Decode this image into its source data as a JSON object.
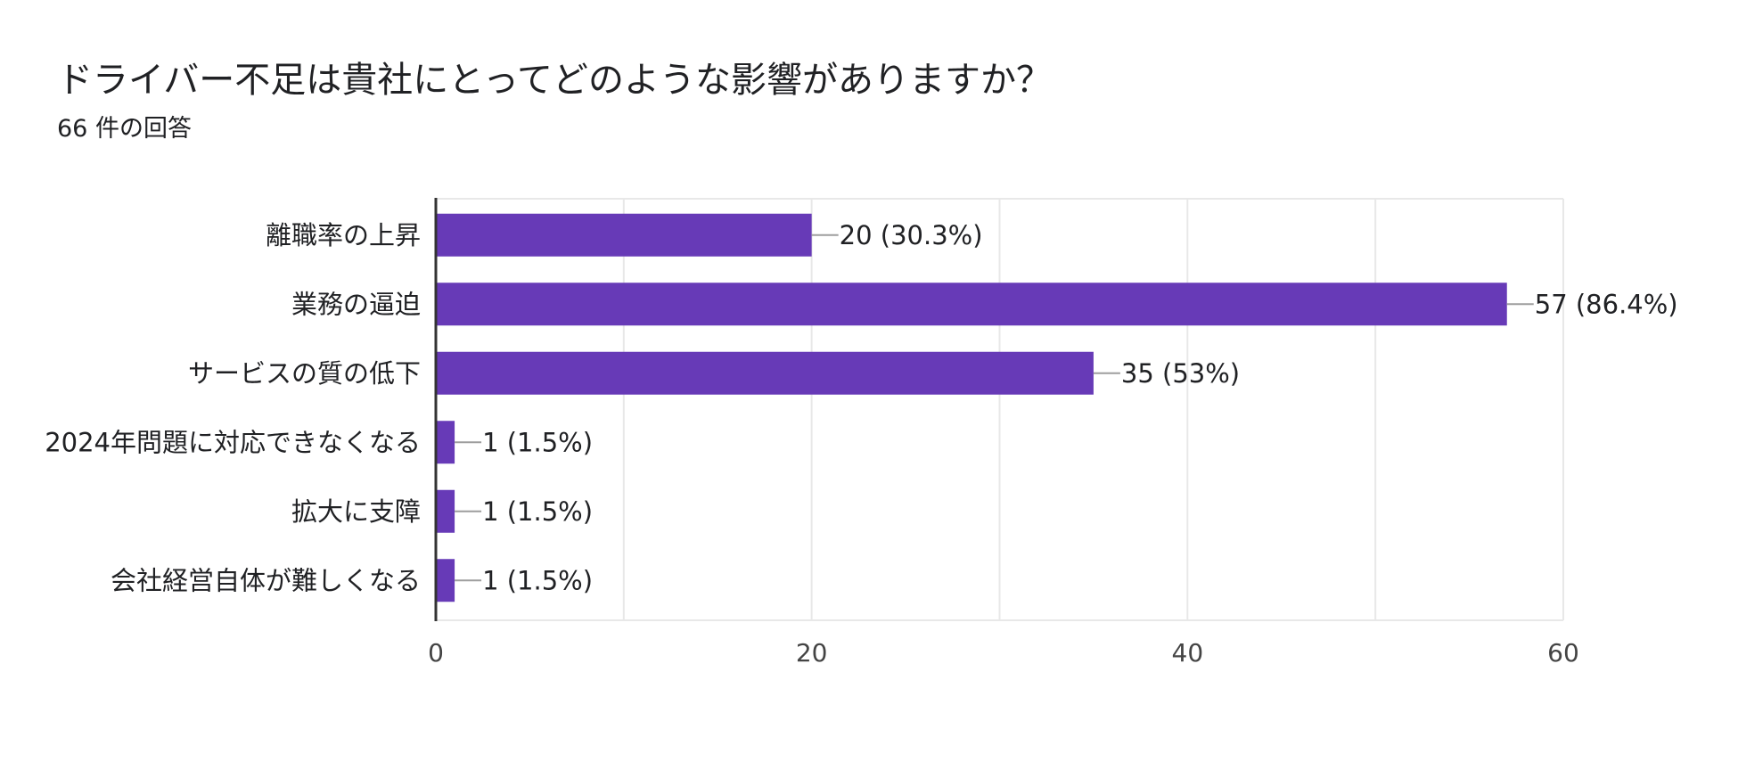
{
  "header": {
    "title": "ドライバー不足は貴社にとってどのような影響がありますか？",
    "subtitle": "66 件の回答"
  },
  "colors": {
    "bar": "#673AB7",
    "grid": "#E8E8E8",
    "axis": "#333333",
    "connector": "#9E9E9E"
  },
  "chart_data": {
    "type": "bar",
    "orientation": "horizontal",
    "title": "ドライバー不足は貴社にとってどのような影響がありますか？",
    "subtitle": "66 件の回答",
    "categories": [
      "離職率の上昇",
      "業務の逼迫",
      "サービスの質の低下",
      "2024年問題に対応できなくなる",
      "拡大に支障",
      "会社経営自体が難しくなる"
    ],
    "values": [
      20,
      57,
      35,
      1,
      1,
      1
    ],
    "data_labels": [
      "20 (30.3%)",
      "57 (86.4%)",
      "35 (53%)",
      "1 (1.5%)",
      "1 (1.5%)",
      "1 (1.5%)"
    ],
    "xlim": [
      0,
      60
    ],
    "x_ticks": [
      0,
      20,
      40,
      60
    ],
    "x_tick_labels": [
      "0",
      "20",
      "40",
      "60"
    ],
    "grid": true,
    "legend": "none"
  }
}
